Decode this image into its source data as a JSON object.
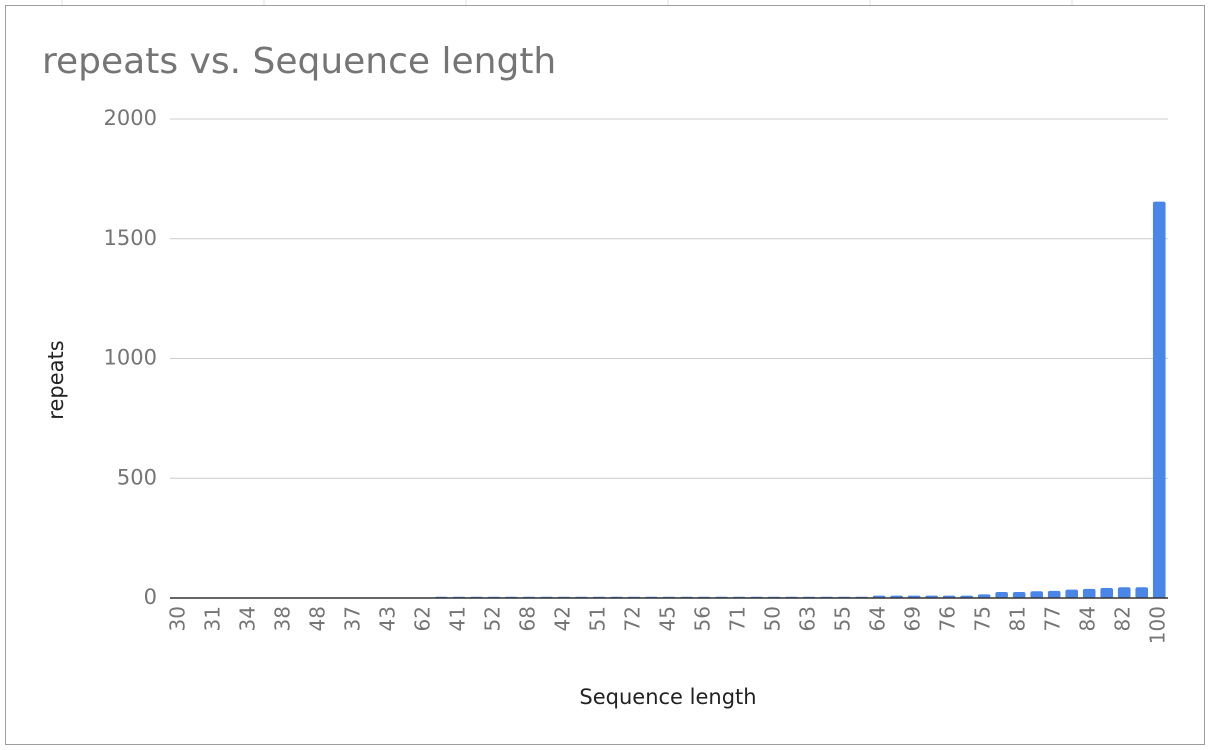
{
  "chart_data": {
    "type": "bar",
    "title": "repeats vs. Sequence length",
    "x_label": "Sequence length",
    "y_label": "repeats",
    "categories": [
      "30",
      null,
      "31",
      null,
      "34",
      null,
      "38",
      null,
      "48",
      null,
      "37",
      null,
      "43",
      null,
      "62",
      null,
      "41",
      null,
      "52",
      null,
      "68",
      null,
      "42",
      null,
      "51",
      null,
      "72",
      null,
      "45",
      null,
      "56",
      null,
      "71",
      null,
      "50",
      null,
      "63",
      null,
      "55",
      null,
      "64",
      null,
      "69",
      null,
      "76",
      null,
      "75",
      null,
      "81",
      null,
      "77",
      null,
      "84",
      null,
      "82",
      null,
      "100"
    ],
    "values": [
      1,
      1,
      1,
      1,
      1,
      1,
      1,
      1,
      1,
      1,
      1,
      1,
      1,
      1,
      2,
      5,
      5,
      5,
      5,
      5,
      5,
      5,
      5,
      5,
      5,
      5,
      5,
      5,
      5,
      5,
      5,
      5,
      5,
      5,
      5,
      5,
      5,
      5,
      5,
      5,
      10,
      10,
      10,
      10,
      10,
      10,
      15,
      25,
      25,
      28,
      30,
      35,
      38,
      42,
      45,
      45,
      1655
    ],
    "color": "#4a86e8",
    "ylim": [
      0,
      2000
    ],
    "yticks": [
      0,
      500,
      1000,
      1500,
      2000
    ],
    "grid": true
  }
}
